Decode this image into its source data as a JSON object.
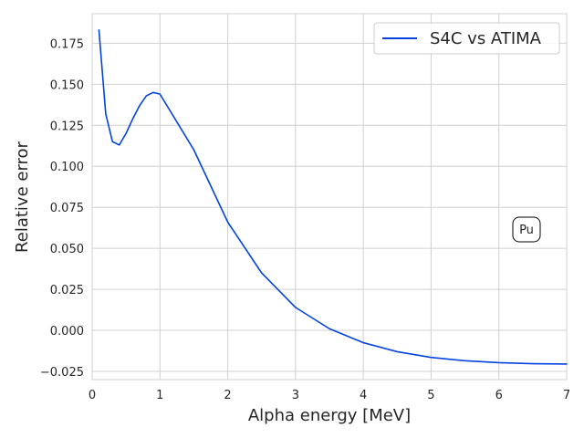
{
  "chart_data": {
    "type": "line",
    "title": "",
    "xlabel": "Alpha energy [MeV]",
    "ylabel": "Relative error",
    "xlim": [
      0,
      7
    ],
    "ylim": [
      -0.03,
      0.193
    ],
    "grid": true,
    "xticks": [
      0,
      1,
      2,
      3,
      4,
      5,
      6,
      7
    ],
    "xtick_labels": [
      "0",
      "1",
      "2",
      "3",
      "4",
      "5",
      "6",
      "7"
    ],
    "yticks": [
      -0.025,
      0.0,
      0.025,
      0.05,
      0.075,
      0.1,
      0.125,
      0.15,
      0.175
    ],
    "ytick_labels": [
      "−0.025",
      "0.000",
      "0.025",
      "0.050",
      "0.075",
      "0.100",
      "0.125",
      "0.150",
      "0.175"
    ],
    "legend_position": "top-right",
    "annotation": {
      "text": "Pu",
      "x": 6.42,
      "y": 0.061
    },
    "series": [
      {
        "name": "S4C vs ATIMA",
        "color": "#0343df",
        "x": [
          0.1,
          0.2,
          0.3,
          0.4,
          0.5,
          0.6,
          0.7,
          0.8,
          0.9,
          1.0,
          1.25,
          1.5,
          2.0,
          2.5,
          3.0,
          3.5,
          4.0,
          4.5,
          5.0,
          5.5,
          6.0,
          6.5,
          7.0
        ],
        "y": [
          0.183,
          0.132,
          0.115,
          0.113,
          0.12,
          0.129,
          0.137,
          0.143,
          0.145,
          0.144,
          0.127,
          0.11,
          0.066,
          0.035,
          0.014,
          0.001,
          -0.0075,
          -0.013,
          -0.0165,
          -0.0185,
          -0.0197,
          -0.0203,
          -0.0205
        ]
      }
    ]
  }
}
